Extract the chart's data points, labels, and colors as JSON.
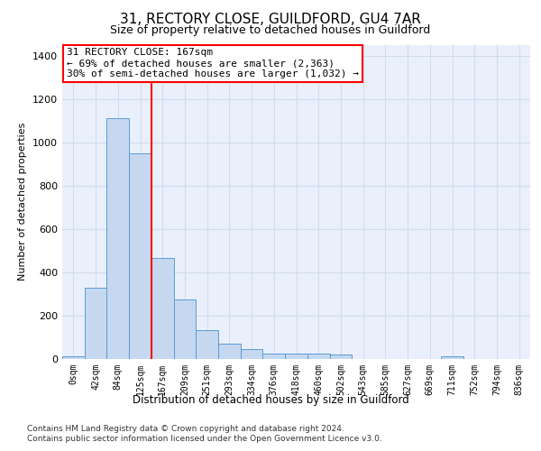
{
  "title1": "31, RECTORY CLOSE, GUILDFORD, GU4 7AR",
  "title2": "Size of property relative to detached houses in Guildford",
  "xlabel": "Distribution of detached houses by size in Guildford",
  "ylabel": "Number of detached properties",
  "footnote1": "Contains HM Land Registry data © Crown copyright and database right 2024.",
  "footnote2": "Contains public sector information licensed under the Open Government Licence v3.0.",
  "annotation_line1": "31 RECTORY CLOSE: 167sqm",
  "annotation_line2": "← 69% of detached houses are smaller (2,363)",
  "annotation_line3": "30% of semi-detached houses are larger (1,032) →",
  "bar_color": "#c5d8f0",
  "bar_edge_color": "#5b9bd5",
  "vline_color": "red",
  "vline_x": 3.5,
  "categories": [
    "0sqm",
    "42sqm",
    "84sqm",
    "125sqm",
    "167sqm",
    "209sqm",
    "251sqm",
    "293sqm",
    "334sqm",
    "376sqm",
    "418sqm",
    "460sqm",
    "502sqm",
    "543sqm",
    "585sqm",
    "627sqm",
    "669sqm",
    "711sqm",
    "752sqm",
    "794sqm",
    "836sqm"
  ],
  "values": [
    10,
    328,
    1110,
    948,
    465,
    272,
    130,
    70,
    42,
    25,
    25,
    25,
    18,
    0,
    0,
    0,
    0,
    12,
    0,
    0,
    0
  ],
  "ylim": [
    0,
    1450
  ],
  "yticks": [
    0,
    200,
    400,
    600,
    800,
    1000,
    1200,
    1400
  ],
  "background_color": "#eaf0fb",
  "grid_color": "#d0ddf0",
  "annotation_box_color": "white",
  "annotation_box_edge": "red",
  "title1_fontsize": 11,
  "title2_fontsize": 9,
  "ylabel_fontsize": 8,
  "xtick_fontsize": 7,
  "ytick_fontsize": 8,
  "annotation_fontsize": 8,
  "xlabel_fontsize": 8.5,
  "footnote_fontsize": 6.5
}
